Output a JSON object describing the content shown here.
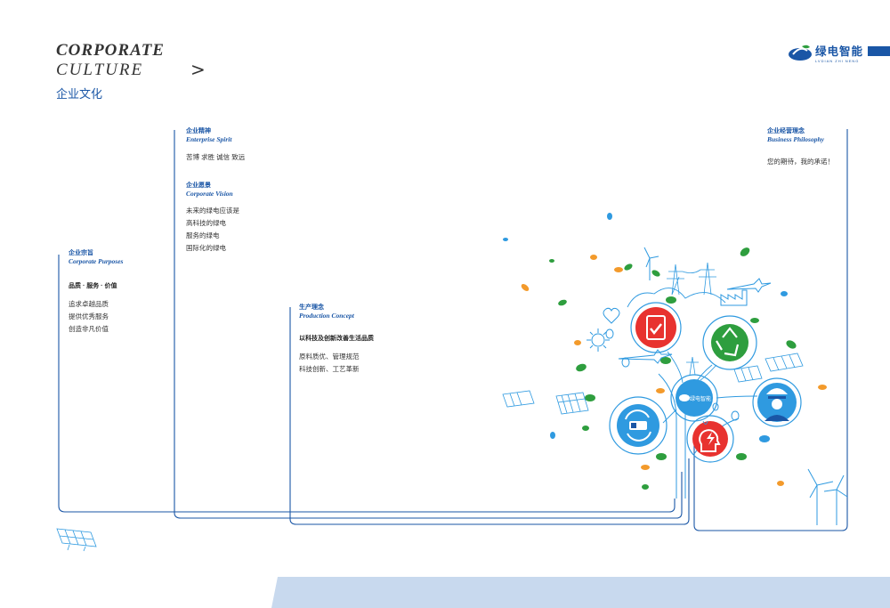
{
  "header": {
    "title_line1": "CORPORATE",
    "title_line2": "CULTURE",
    "chevron": ">",
    "title_cn": "企业文化"
  },
  "logo": {
    "name_cn": "绿电智能",
    "name_en": "LVDIAN ZHI NENG"
  },
  "sections": {
    "spirit": {
      "title_cn": "企业精神",
      "title_en": "Enterprise Spirit",
      "text": "苦博 求胜 诚信 致远"
    },
    "vision": {
      "title_cn": "企业愿景",
      "title_en": "Corporate Vision",
      "lines": [
        "未来的绿电应该是",
        "高科技的绿电",
        "服务的绿电",
        "国际化的绿电"
      ]
    },
    "purposes": {
      "title_cn": "企业宗旨",
      "title_en": "Corporate Purposes",
      "motto": "品质 · 服务 · 价值",
      "lines": [
        "追求卓越品质",
        "提供优秀服务",
        "创造非凡价值"
      ]
    },
    "production": {
      "title_cn": "生产理念",
      "title_en": "Production Concept",
      "motto": "以科技及创新改善生活品质",
      "lines": [
        "原料质优、管理规范",
        "科技创新、工艺革新"
      ]
    },
    "business": {
      "title_cn": "企业经营理念",
      "title_en": "Business Philosophy",
      "text": "您的期待，我的承诺！"
    }
  },
  "illustration": {
    "center_badge": "绿电智能",
    "icons": [
      "tablet-check-icon",
      "recycle-icon",
      "worker-icon",
      "battery-icon",
      "lightning-head-icon"
    ]
  },
  "colors": {
    "brand_blue": "#1a56a6",
    "red": "#e8322f",
    "green": "#2e9e3e",
    "light_blue": "#2f9ae0",
    "orange": "#f39a2b"
  }
}
